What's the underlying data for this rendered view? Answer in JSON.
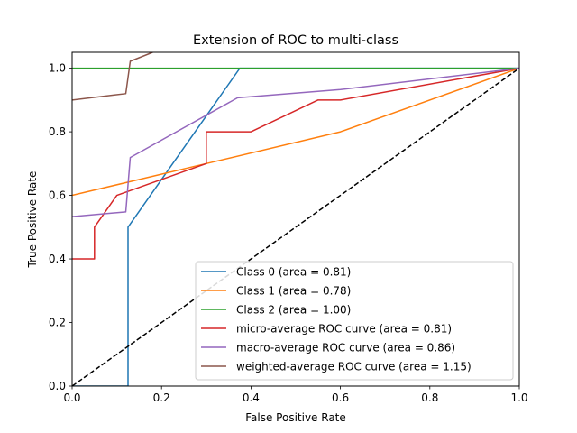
{
  "chart_data": {
    "type": "line",
    "title": "Extension of ROC to multi-class",
    "xlabel": "False Positive Rate",
    "ylabel": "True Positive Rate",
    "xlim": [
      0,
      1
    ],
    "ylim": [
      0,
      1.05
    ],
    "x_ticks": [
      "0.0",
      "0.2",
      "0.4",
      "0.6",
      "0.8",
      "1.0"
    ],
    "y_ticks": [
      "0.0",
      "0.2",
      "0.4",
      "0.6",
      "0.8",
      "1.0"
    ],
    "grid": false,
    "legend_position": "lower-right",
    "series": [
      {
        "name": "Class 0 (area = 0.81)",
        "color": "#1f77b4",
        "x": [
          0,
          0.125,
          0.125,
          0.375,
          1.0
        ],
        "y": [
          0,
          0,
          0.5,
          1.0,
          1.0
        ]
      },
      {
        "name": "Class 1 (area = 0.78)",
        "color": "#ff7f0e",
        "x": [
          0,
          0.3,
          0.6,
          1.0
        ],
        "y": [
          0.6,
          0.7,
          0.8,
          1.0
        ]
      },
      {
        "name": "Class 2 (area = 1.00)",
        "color": "#2ca02c",
        "x": [
          0,
          1.0
        ],
        "y": [
          1.0,
          1.0
        ]
      },
      {
        "name": "micro-average ROC curve (area = 0.81)",
        "color": "#d62728",
        "x": [
          0,
          0.05,
          0.05,
          0.1,
          0.3,
          0.3,
          0.4,
          0.55,
          0.6,
          1.0
        ],
        "y": [
          0.4,
          0.4,
          0.5,
          0.6,
          0.7,
          0.8,
          0.8,
          0.9,
          0.9,
          1.0
        ]
      },
      {
        "name": "macro-average ROC curve (area = 0.86)",
        "color": "#9467bd",
        "x": [
          0,
          0.12,
          0.13,
          0.37,
          0.6,
          1.0
        ],
        "y": [
          0.533,
          0.548,
          0.719,
          0.907,
          0.933,
          1.0
        ]
      },
      {
        "name": "weighted-average ROC curve (area = 1.15)",
        "color": "#8c564b",
        "x": [
          0,
          0.12,
          0.13,
          0.18
        ],
        "y": [
          0.9,
          0.92,
          1.022,
          1.05
        ]
      }
    ],
    "reference_line": {
      "color": "#000000",
      "style": "dashed",
      "x": [
        0,
        1
      ],
      "y": [
        0,
        1
      ]
    }
  }
}
